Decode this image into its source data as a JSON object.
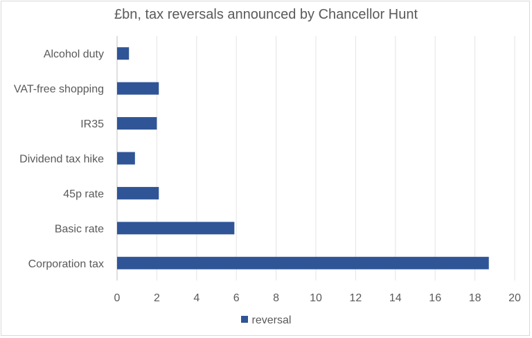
{
  "chart_data": {
    "type": "bar",
    "orientation": "horizontal",
    "title": "£bn, tax reversals announced by Chancellor Hunt",
    "categories": [
      "Alcohol duty",
      "VAT-free shopping",
      "IR35",
      "Dividend tax hike",
      "45p rate",
      "Basic rate",
      "Corporation tax"
    ],
    "series": [
      {
        "name": "reversal",
        "values": [
          0.6,
          2.1,
          2.0,
          0.9,
          2.1,
          5.9,
          18.7
        ],
        "color": "#2f5597"
      }
    ],
    "xlim": [
      0,
      20
    ],
    "xticks": [
      0,
      2,
      4,
      6,
      8,
      10,
      12,
      14,
      16,
      18,
      20
    ],
    "grid": "vertical",
    "legend": "bottom"
  }
}
